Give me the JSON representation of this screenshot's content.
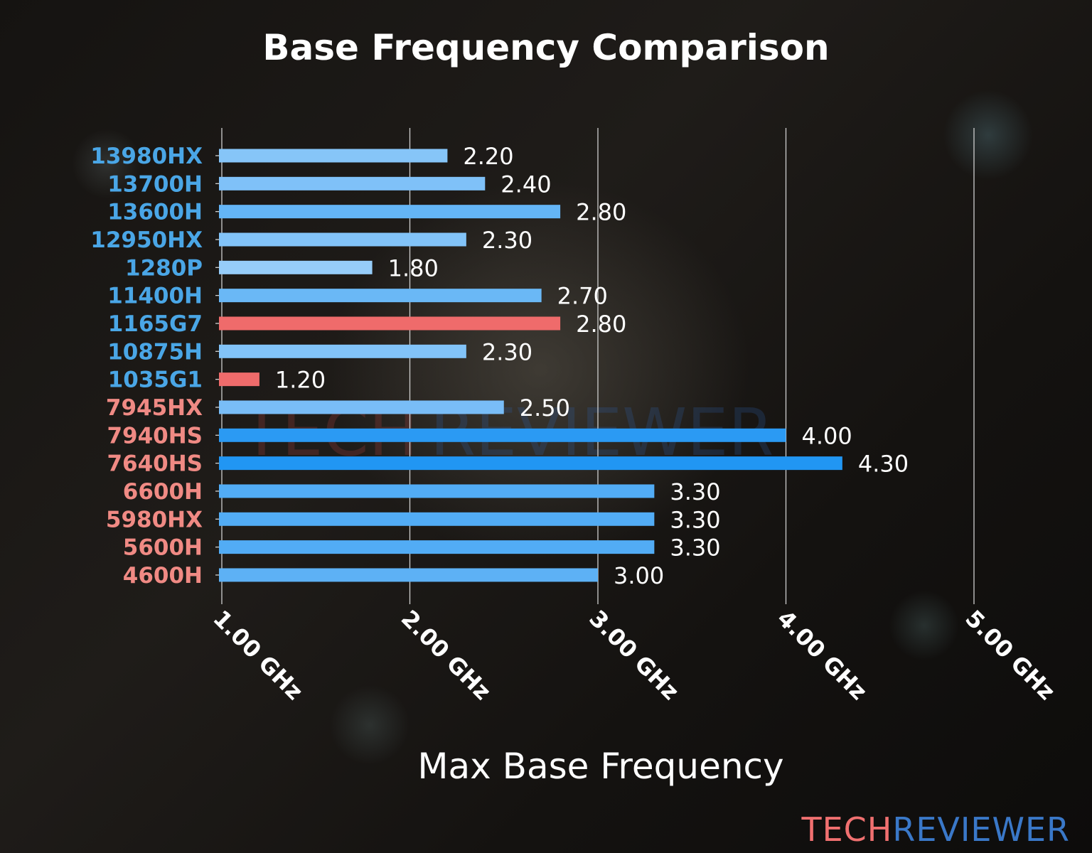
{
  "chart_data": {
    "type": "bar",
    "orientation": "horizontal",
    "title": "Base Frequency Comparison",
    "xlabel": "Max Base Frequency",
    "ylabel": "",
    "xlim": [
      1.0,
      5.0
    ],
    "xticks": [
      1,
      2,
      3,
      4,
      5
    ],
    "xtick_labels": [
      "1.00 GHz",
      "2.00 GHz",
      "3.00 GHz",
      "4.00 GHz",
      "5.00 GHz"
    ],
    "grid": "vertical",
    "categories": [
      "13980HX",
      "13700H",
      "13600H",
      "12950HX",
      "1280P",
      "11400H",
      "1165G7",
      "10875H",
      "1035G1",
      "7945HX",
      "7940HS",
      "7640HS",
      "6600H",
      "5980HX",
      "5600H",
      "4600H"
    ],
    "values": [
      2.2,
      2.4,
      2.8,
      2.3,
      1.8,
      2.7,
      2.8,
      2.3,
      1.2,
      2.5,
      4.0,
      4.3,
      3.3,
      3.3,
      3.3,
      3.0
    ],
    "value_labels": [
      "2.20",
      "2.40",
      "2.80",
      "2.30",
      "1.80",
      "2.70",
      "2.80",
      "2.30",
      "1.20",
      "2.50",
      "4.00",
      "4.30",
      "3.30",
      "3.30",
      "3.30",
      "3.00"
    ],
    "bar_colors": [
      "#86c5f8",
      "#7fc1f8",
      "#64b5f6",
      "#82c3f8",
      "#96cdf9",
      "#6ab8f6",
      "#ef6b6b",
      "#82c3f8",
      "#ef6b6b",
      "#79bdf7",
      "#2b9af3",
      "#2196f3",
      "#52acf5",
      "#52acf5",
      "#52acf5",
      "#5db1f5"
    ],
    "label_colors": [
      "#4aa6e6",
      "#4aa6e6",
      "#4aa6e6",
      "#4aa6e6",
      "#4aa6e6",
      "#4aa6e6",
      "#4aa6e6",
      "#4aa6e6",
      "#4aa6e6",
      "#f08a84",
      "#f08a84",
      "#f08a84",
      "#f08a84",
      "#f08a84",
      "#f08a84",
      "#f08a84"
    ]
  },
  "branding": {
    "logo_part1": "TECH",
    "logo_part2": "REVIEWER",
    "logo_color1": "#f07070",
    "logo_color2": "#3a78c8"
  }
}
